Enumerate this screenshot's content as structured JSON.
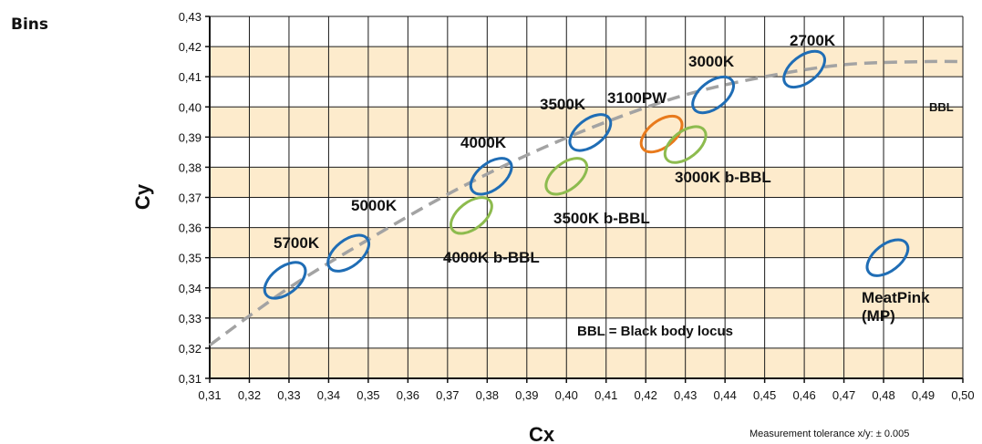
{
  "page": {
    "title": "Bins",
    "note": "Measurement tolerance x/y: ± 0.005"
  },
  "colors": {
    "band": "#fdebcc",
    "grid": "#1a1a1a",
    "blue": "#1f6db5",
    "green": "#8dbb4e",
    "orange": "#e87a1c",
    "bbl": "#a3a3a3"
  },
  "chart_data": {
    "type": "scatter",
    "xlabel": "Cx",
    "ylabel": "Cy",
    "xlim": [
      0.31,
      0.5
    ],
    "ylim": [
      0.31,
      0.43
    ],
    "x_ticks": [
      "0,31",
      "0,32",
      "0,33",
      "0,34",
      "0,35",
      "0,36",
      "0,37",
      "0,38",
      "0,39",
      "0,40",
      "0,41",
      "0,42",
      "0,43",
      "0,44",
      "0,45",
      "0,46",
      "0,47",
      "0,48",
      "0,49",
      "0,50"
    ],
    "y_ticks": [
      "0,31",
      "0,32",
      "0,33",
      "0,34",
      "0,35",
      "0,36",
      "0,37",
      "0,38",
      "0,39",
      "0,40",
      "0,41",
      "0,42",
      "0,43"
    ],
    "grid": true,
    "series": [
      {
        "name": "BBL",
        "style": "dashed-curve",
        "x": [
          0.31,
          0.33,
          0.35,
          0.37,
          0.39,
          0.41,
          0.43,
          0.45,
          0.47,
          0.49,
          0.5
        ],
        "y": [
          0.321,
          0.34,
          0.356,
          0.371,
          0.384,
          0.395,
          0.404,
          0.41,
          0.414,
          0.415,
          0.415
        ]
      }
    ],
    "bins": [
      {
        "label": "5700K",
        "cx": 0.329,
        "cy": 0.3425,
        "color": "blue"
      },
      {
        "label": "5000K",
        "cx": 0.345,
        "cy": 0.3515,
        "color": "blue"
      },
      {
        "label": "4000K",
        "cx": 0.381,
        "cy": 0.377,
        "color": "blue"
      },
      {
        "label": "3500K",
        "cx": 0.406,
        "cy": 0.3915,
        "color": "blue"
      },
      {
        "label": "3000K",
        "cx": 0.437,
        "cy": 0.404,
        "color": "blue"
      },
      {
        "label": "2700K",
        "cx": 0.46,
        "cy": 0.4125,
        "color": "blue"
      },
      {
        "label": "3100PW",
        "cx": 0.424,
        "cy": 0.391,
        "color": "orange"
      },
      {
        "label": "3000K b-BBL",
        "cx": 0.43,
        "cy": 0.3875,
        "color": "green"
      },
      {
        "label": "3500K b-BBL",
        "cx": 0.4,
        "cy": 0.377,
        "color": "green"
      },
      {
        "label": "4000K b-BBL",
        "cx": 0.376,
        "cy": 0.364,
        "color": "green"
      },
      {
        "label": "MeatPink\n(MP)",
        "cx": 0.481,
        "cy": 0.35,
        "color": "blue"
      }
    ],
    "annotations": [
      {
        "text": "BBL"
      },
      {
        "text": "BBL = Black body locus"
      }
    ]
  }
}
